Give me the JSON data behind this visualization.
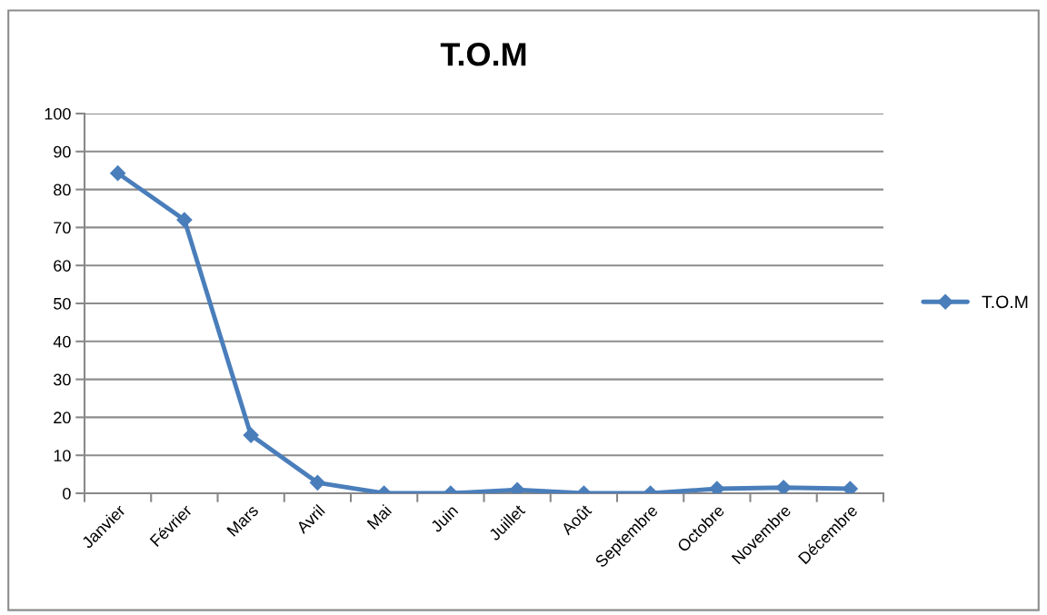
{
  "chart_data": {
    "type": "line",
    "title": "T.O.M",
    "categories": [
      "Janvier",
      "Février",
      "Mars",
      "Avril",
      "Mai",
      "Juin",
      "Juillet",
      "Août",
      "Septembre",
      "Octobre",
      "Novembre",
      "Décembre"
    ],
    "series": [
      {
        "name": "T.O.M",
        "color": "#4a7ebb",
        "values": [
          84.3,
          72,
          15.3,
          2.8,
          0,
          0,
          0.9,
          0,
          0,
          1.2,
          1.5,
          1.2
        ]
      }
    ],
    "ylim": [
      0,
      100
    ],
    "yticks": [
      0,
      10,
      20,
      30,
      40,
      50,
      60,
      70,
      80,
      90,
      100
    ],
    "grid": "y",
    "legend": "right",
    "marker": "diamond",
    "line_style": "solid"
  }
}
